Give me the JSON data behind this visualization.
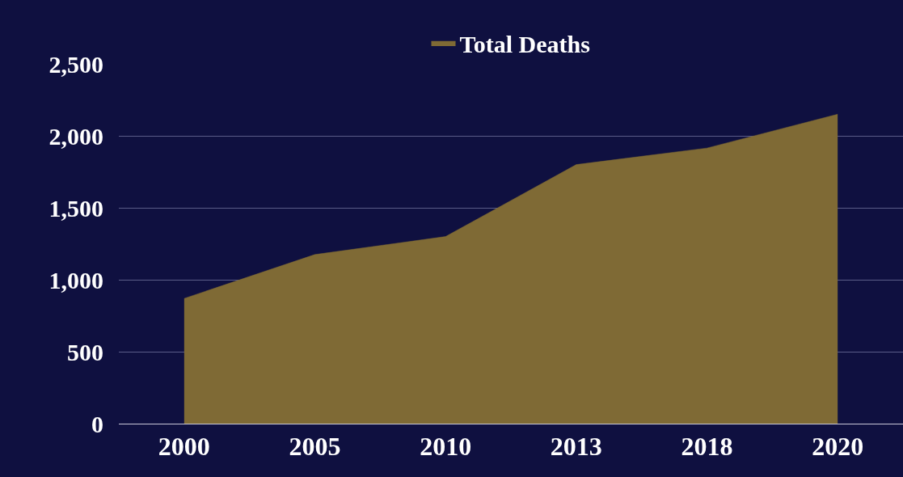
{
  "chart_data": {
    "type": "area",
    "categories": [
      "2000",
      "2005",
      "2010",
      "2013",
      "2018",
      "2020"
    ],
    "series": [
      {
        "name": "Total Deaths",
        "color": "#7f6a35",
        "values": [
          870,
          1175,
          1300,
          1800,
          1915,
          2150
        ]
      }
    ],
    "ylim": [
      0,
      2500
    ],
    "yticks": [
      0,
      500,
      {
        "value": 1000,
        "label": "1,000"
      },
      {
        "value": 1500,
        "label": "1,500"
      },
      {
        "value": 2000,
        "label": "2,000"
      },
      {
        "value": 2500,
        "label": "2,500"
      }
    ],
    "grid": "y",
    "legend": "top"
  }
}
